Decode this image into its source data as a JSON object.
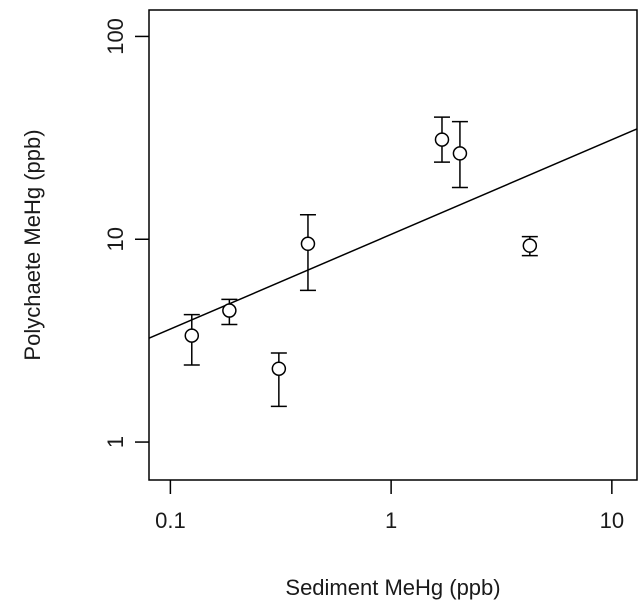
{
  "chart_data": {
    "type": "scatter",
    "title": "",
    "xlabel": "Sediment MeHg (ppb)",
    "ylabel": "Polychaete MeHg (ppb)",
    "xscale": "log",
    "yscale": "log",
    "xlim": [
      0.08,
      13
    ],
    "ylim": [
      0.65,
      135
    ],
    "grid": false,
    "legend": "none",
    "xticks": [
      {
        "value": 0.1,
        "label": "0.1"
      },
      {
        "value": 1,
        "label": "1"
      },
      {
        "value": 10,
        "label": "10"
      }
    ],
    "yticks": [
      {
        "value": 1,
        "label": "1"
      },
      {
        "value": 10,
        "label": "10"
      },
      {
        "value": 100,
        "label": "100"
      }
    ],
    "points": [
      {
        "x": 0.125,
        "y": 3.35,
        "err_low": 2.4,
        "err_high": 4.25
      },
      {
        "x": 0.185,
        "y": 4.45,
        "err_low": 3.8,
        "err_high": 5.05
      },
      {
        "x": 0.31,
        "y": 2.3,
        "err_low": 1.5,
        "err_high": 2.75
      },
      {
        "x": 0.42,
        "y": 9.5,
        "err_low": 5.6,
        "err_high": 13.2
      },
      {
        "x": 1.7,
        "y": 31,
        "err_low": 24,
        "err_high": 40
      },
      {
        "x": 2.05,
        "y": 26.5,
        "err_low": 18,
        "err_high": 38
      },
      {
        "x": 4.25,
        "y": 9.3,
        "err_low": 8.3,
        "err_high": 10.3
      }
    ],
    "fit_line": {
      "x": [
        0.08,
        13
      ],
      "y": [
        3.25,
        35
      ]
    },
    "colors": {
      "line": "#000000",
      "marker_fill": "#ffffff",
      "marker_stroke": "#000000"
    }
  }
}
